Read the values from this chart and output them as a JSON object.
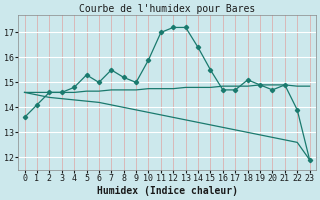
{
  "title": "Courbe de l'humidex pour Bares",
  "xlabel": "Humidex (Indice chaleur)",
  "background_color": "#cce8ec",
  "line_color": "#1a7a6e",
  "grid_color": "#e8c8c8",
  "grid_color2": "#ffffff",
  "x_values": [
    0,
    1,
    2,
    3,
    4,
    5,
    6,
    7,
    8,
    9,
    10,
    11,
    12,
    13,
    14,
    15,
    16,
    17,
    18,
    19,
    20,
    21,
    22,
    23
  ],
  "y_main": [
    13.6,
    14.1,
    14.6,
    14.6,
    14.8,
    15.3,
    15.0,
    15.5,
    15.2,
    15.0,
    15.9,
    17.0,
    17.2,
    17.2,
    16.4,
    15.5,
    14.7,
    14.7,
    15.1,
    14.9,
    14.7,
    14.9,
    13.9,
    11.9
  ],
  "y_trend1": [
    14.6,
    14.6,
    14.6,
    14.6,
    14.6,
    14.65,
    14.65,
    14.7,
    14.7,
    14.7,
    14.75,
    14.75,
    14.75,
    14.8,
    14.8,
    14.8,
    14.85,
    14.85,
    14.85,
    14.9,
    14.9,
    14.9,
    14.85,
    14.85
  ],
  "y_trend2": [
    14.6,
    14.5,
    14.4,
    14.35,
    14.3,
    14.25,
    14.2,
    14.1,
    14.0,
    13.9,
    13.8,
    13.7,
    13.6,
    13.5,
    13.4,
    13.3,
    13.2,
    13.1,
    13.0,
    12.9,
    12.8,
    12.7,
    12.6,
    11.9
  ],
  "ylim": [
    11.5,
    17.7
  ],
  "yticks": [
    12,
    13,
    14,
    15,
    16,
    17
  ],
  "xlim": [
    -0.5,
    23.5
  ],
  "title_fontsize": 7,
  "label_fontsize": 7,
  "tick_fontsize": 6
}
